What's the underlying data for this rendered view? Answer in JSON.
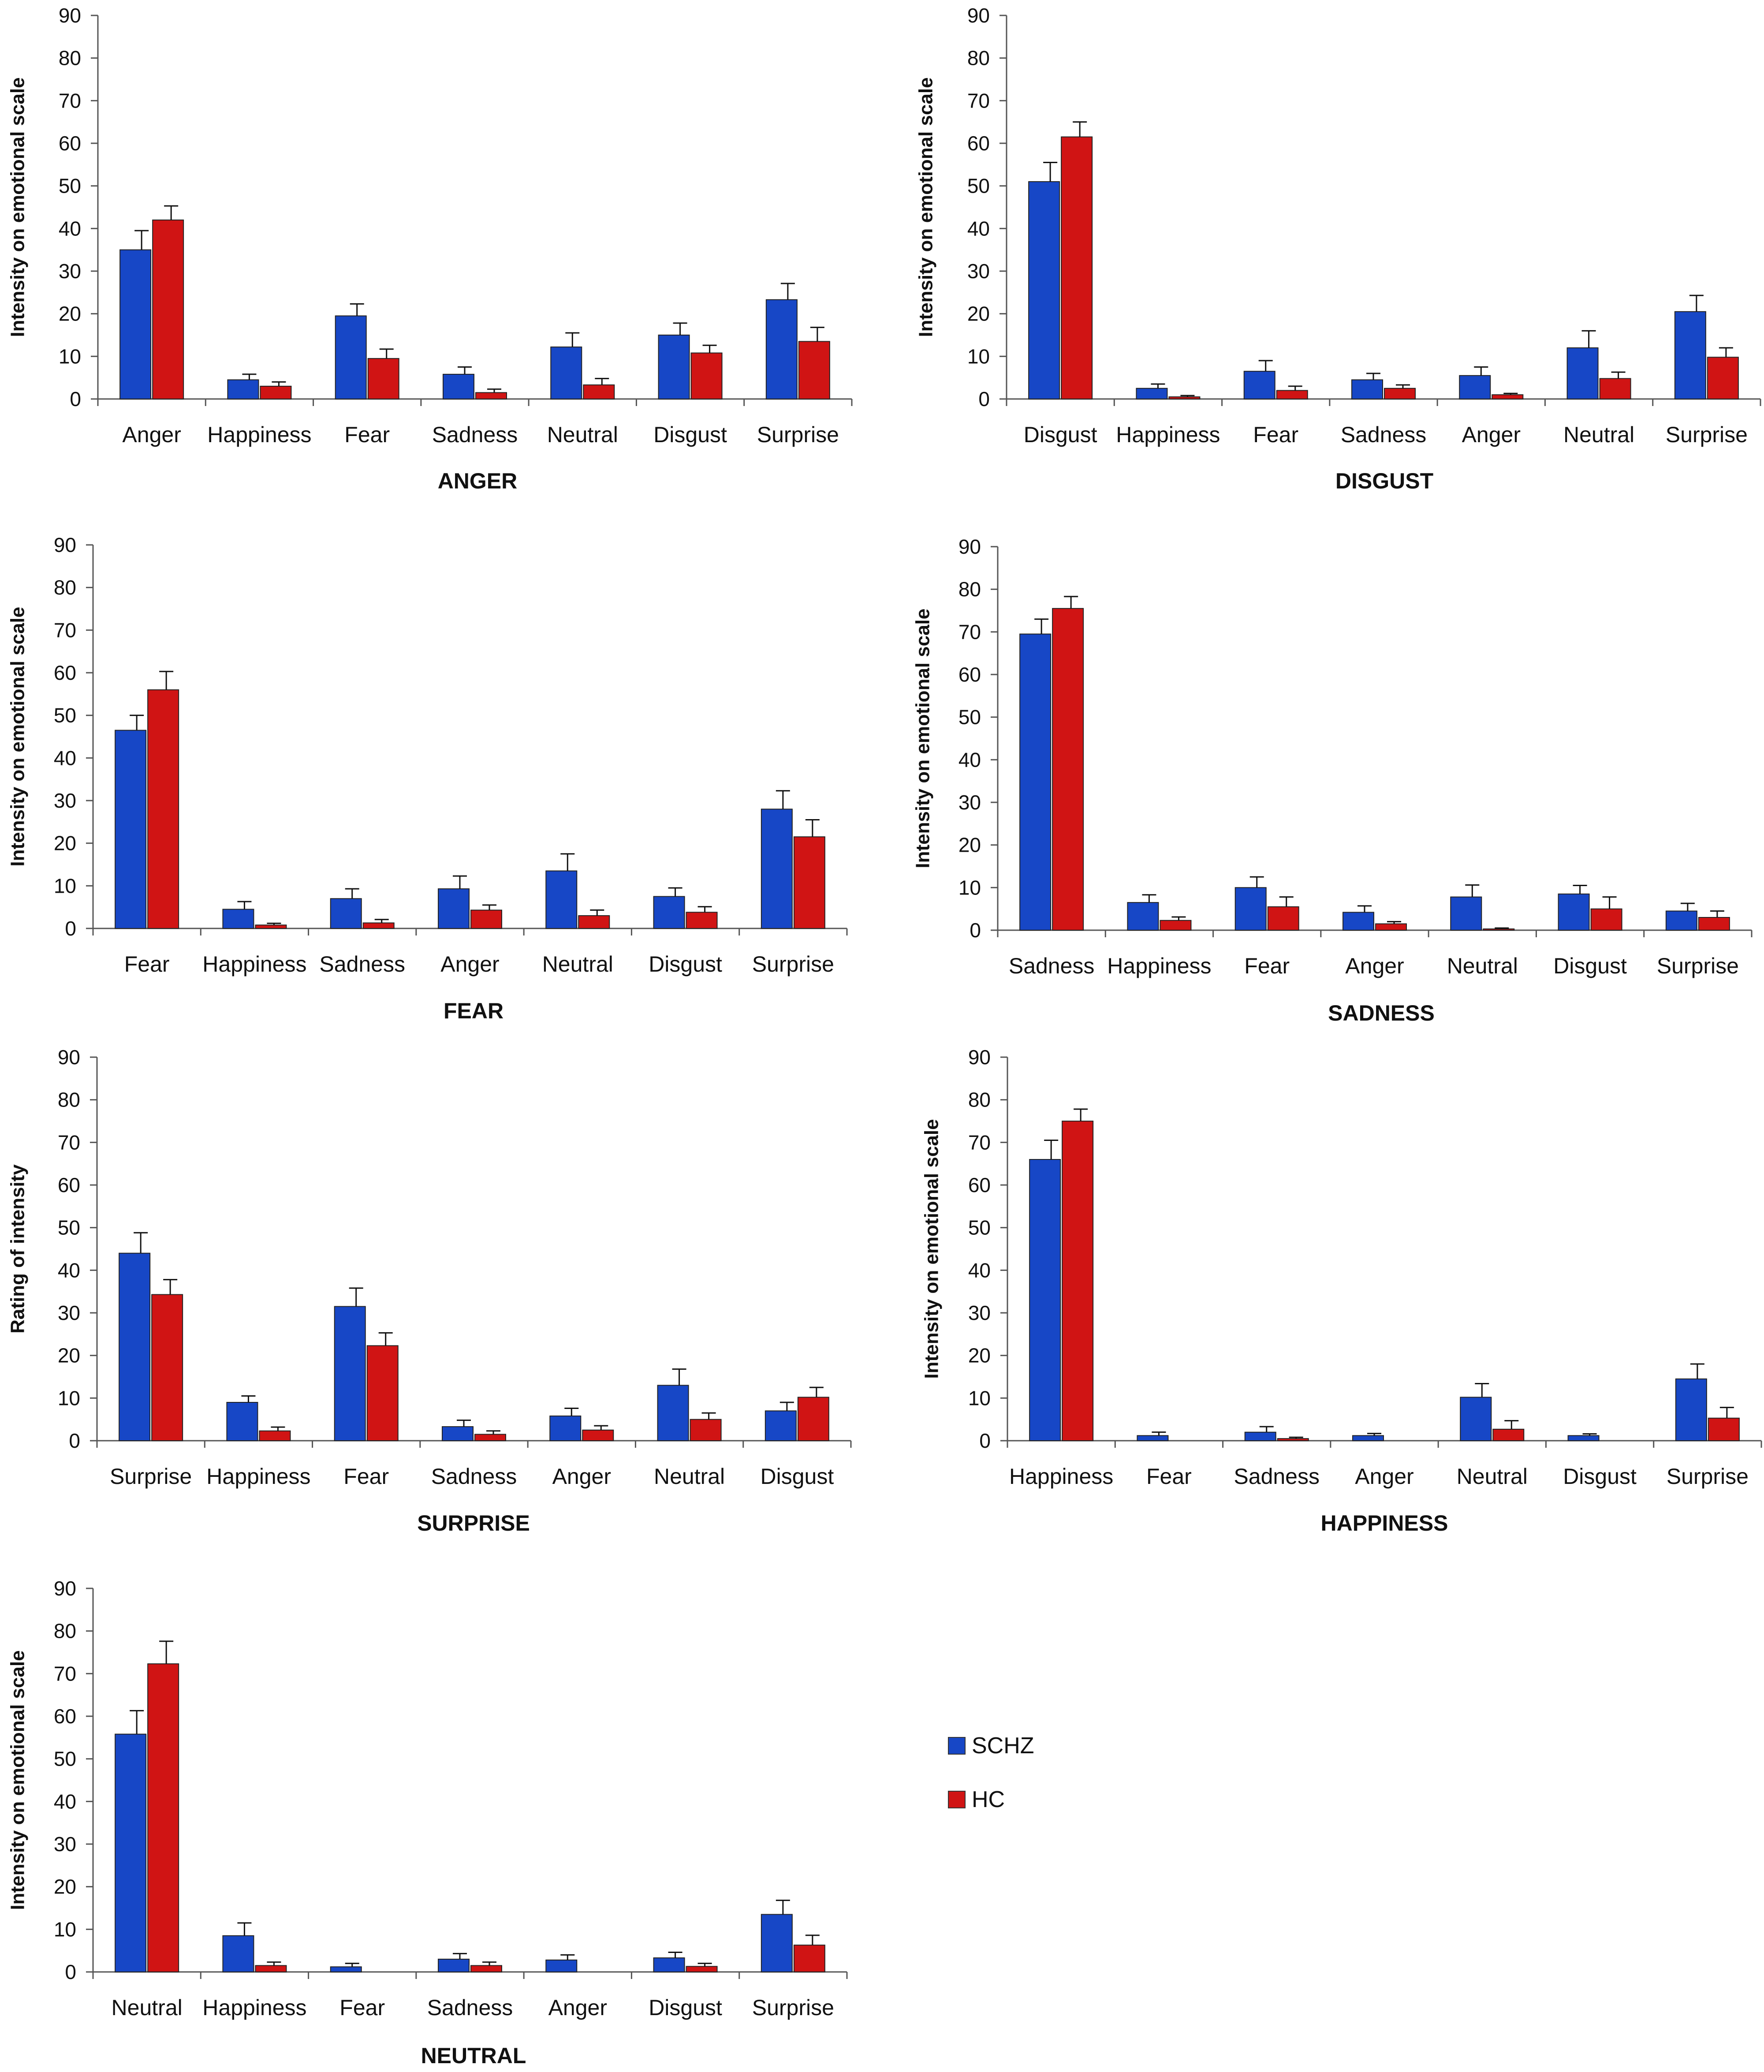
{
  "colors": {
    "SCHZ": "#1747c6",
    "HC": "#d01414"
  },
  "legend": {
    "schz_label": "SCHZ",
    "hc_label": "HC"
  },
  "chart_data": [
    {
      "type": "bar",
      "title": "ANGER",
      "ylabel": "Intensity on emotional scale",
      "ylim": [
        0,
        90
      ],
      "yticks": [
        "0",
        "10",
        "20",
        "30",
        "40",
        "50",
        "60",
        "70",
        "80",
        "90"
      ],
      "categories": [
        "Anger",
        "Happiness",
        "Fear",
        "Sadness",
        "Neutral",
        "Disgust",
        "Surprise"
      ],
      "series": [
        {
          "name": "SCHZ",
          "values": [
            35,
            4.5,
            19.5,
            5.8,
            12.2,
            15,
            23.3
          ],
          "errors": [
            4.5,
            1.3,
            2.8,
            1.7,
            3.3,
            2.8,
            3.8
          ]
        },
        {
          "name": "HC",
          "values": [
            42,
            3,
            9.5,
            1.5,
            3.3,
            10.8,
            13.5
          ],
          "errors": [
            3.3,
            1,
            2.2,
            0.8,
            1.5,
            1.8,
            3.3
          ]
        }
      ]
    },
    {
      "type": "bar",
      "title": "DISGUST",
      "ylabel": "Intensity on emotional scale",
      "ylim": [
        0,
        90
      ],
      "yticks": [
        "0",
        "10",
        "20",
        "30",
        "40",
        "50",
        "60",
        "70",
        "80",
        "90"
      ],
      "categories": [
        "Disgust",
        "Happiness",
        "Fear",
        "Sadness",
        "Anger",
        "Neutral",
        "Surprise"
      ],
      "series": [
        {
          "name": "SCHZ",
          "values": [
            51,
            2.5,
            6.5,
            4.5,
            5.5,
            12,
            20.5
          ],
          "errors": [
            4.5,
            1,
            2.5,
            1.5,
            2,
            4,
            3.8
          ]
        },
        {
          "name": "HC",
          "values": [
            61.5,
            0.5,
            2,
            2.5,
            1,
            4.8,
            9.8
          ],
          "errors": [
            3.5,
            0.3,
            1,
            0.8,
            0.3,
            1.5,
            2.2
          ]
        }
      ]
    },
    {
      "type": "bar",
      "title": "FEAR",
      "ylabel": "Intensity on emotional scale",
      "ylim": [
        0,
        90
      ],
      "yticks": [
        "0",
        "10",
        "20",
        "30",
        "40",
        "50",
        "60",
        "70",
        "80",
        "90"
      ],
      "categories": [
        "Fear",
        "Happiness",
        "Sadness",
        "Anger",
        "Neutral",
        "Disgust",
        "Surprise"
      ],
      "series": [
        {
          "name": "SCHZ",
          "values": [
            46.5,
            4.5,
            7,
            9.3,
            13.5,
            7.5,
            28
          ],
          "errors": [
            3.5,
            1.8,
            2.3,
            3,
            4,
            2,
            4.3
          ]
        },
        {
          "name": "HC",
          "values": [
            56,
            0.8,
            1.3,
            4.3,
            3,
            3.8,
            21.5
          ],
          "errors": [
            4.3,
            0.4,
            0.8,
            1.2,
            1.3,
            1.3,
            4
          ]
        }
      ]
    },
    {
      "type": "bar",
      "title": "SADNESS",
      "ylabel": "Intensity on emotional scale",
      "ylim": [
        0,
        90
      ],
      "yticks": [
        "0",
        "10",
        "20",
        "30",
        "40",
        "50",
        "60",
        "70",
        "80",
        "90"
      ],
      "categories": [
        "Sadness",
        "Happiness",
        "Fear",
        "Anger",
        "Neutral",
        "Disgust",
        "Surprise"
      ],
      "series": [
        {
          "name": "SCHZ",
          "values": [
            69.5,
            6.5,
            10,
            4.2,
            7.8,
            8.5,
            4.5
          ],
          "errors": [
            3.5,
            1.8,
            2.5,
            1.5,
            2.8,
            2,
            1.8
          ]
        },
        {
          "name": "HC",
          "values": [
            75.5,
            2.3,
            5.5,
            1.5,
            0.3,
            5,
            3
          ],
          "errors": [
            2.8,
            0.8,
            2.3,
            0.5,
            0.2,
            2.8,
            1.5
          ]
        }
      ]
    },
    {
      "type": "bar",
      "title": "SURPRISE",
      "ylabel": "Rating of intensity",
      "ylim": [
        0,
        90
      ],
      "yticks": [
        "0",
        "10",
        "20",
        "30",
        "40",
        "50",
        "60",
        "70",
        "80",
        "90"
      ],
      "categories": [
        "Surprise",
        "Happiness",
        "Fear",
        "Sadness",
        "Anger",
        "Neutral",
        "Disgust"
      ],
      "series": [
        {
          "name": "SCHZ",
          "values": [
            44,
            9,
            31.5,
            3.3,
            5.8,
            13,
            7
          ],
          "errors": [
            4.8,
            1.5,
            4.3,
            1.5,
            1.8,
            3.8,
            2
          ]
        },
        {
          "name": "HC",
          "values": [
            34.3,
            2.3,
            22.3,
            1.5,
            2.5,
            5,
            10.2
          ],
          "errors": [
            3.5,
            0.9,
            3,
            0.8,
            1,
            1.5,
            2.3
          ]
        }
      ]
    },
    {
      "type": "bar",
      "title": "HAPPINESS",
      "ylabel": "Intensity on emotional scale",
      "ylim": [
        0,
        90
      ],
      "yticks": [
        "0",
        "10",
        "20",
        "30",
        "40",
        "50",
        "60",
        "70",
        "80",
        "90"
      ],
      "categories": [
        "Happiness",
        "Fear",
        "Sadness",
        "Anger",
        "Neutral",
        "Disgust",
        "Surprise"
      ],
      "series": [
        {
          "name": "SCHZ",
          "values": [
            66,
            1.2,
            2,
            1.2,
            10.2,
            1.2,
            14.5
          ],
          "errors": [
            4.5,
            0.8,
            1.3,
            0.5,
            3.2,
            0.4,
            3.5
          ]
        },
        {
          "name": "HC",
          "values": [
            75,
            0,
            0.5,
            0,
            2.7,
            0,
            5.3
          ],
          "errors": [
            2.8,
            0,
            0.3,
            0,
            2,
            0,
            2.5
          ]
        }
      ]
    },
    {
      "type": "bar",
      "title": "NEUTRAL",
      "ylabel": "Intensity on emotional scale",
      "ylim": [
        0,
        90
      ],
      "yticks": [
        "0",
        "10",
        "20",
        "30",
        "40",
        "50",
        "60",
        "70",
        "80",
        "90"
      ],
      "categories": [
        "Neutral",
        "Happiness",
        "Fear",
        "Sadness",
        "Anger",
        "Disgust",
        "Surprise"
      ],
      "series": [
        {
          "name": "SCHZ",
          "values": [
            55.8,
            8.5,
            1.2,
            3,
            2.8,
            3.3,
            13.5
          ],
          "errors": [
            5.5,
            3,
            0.8,
            1.3,
            1.2,
            1.3,
            3.3
          ]
        },
        {
          "name": "HC",
          "values": [
            72.3,
            1.5,
            0,
            1.5,
            0,
            1.3,
            6.3
          ],
          "errors": [
            5.3,
            0.8,
            0,
            0.8,
            0,
            0.7,
            2.3
          ]
        }
      ]
    }
  ]
}
